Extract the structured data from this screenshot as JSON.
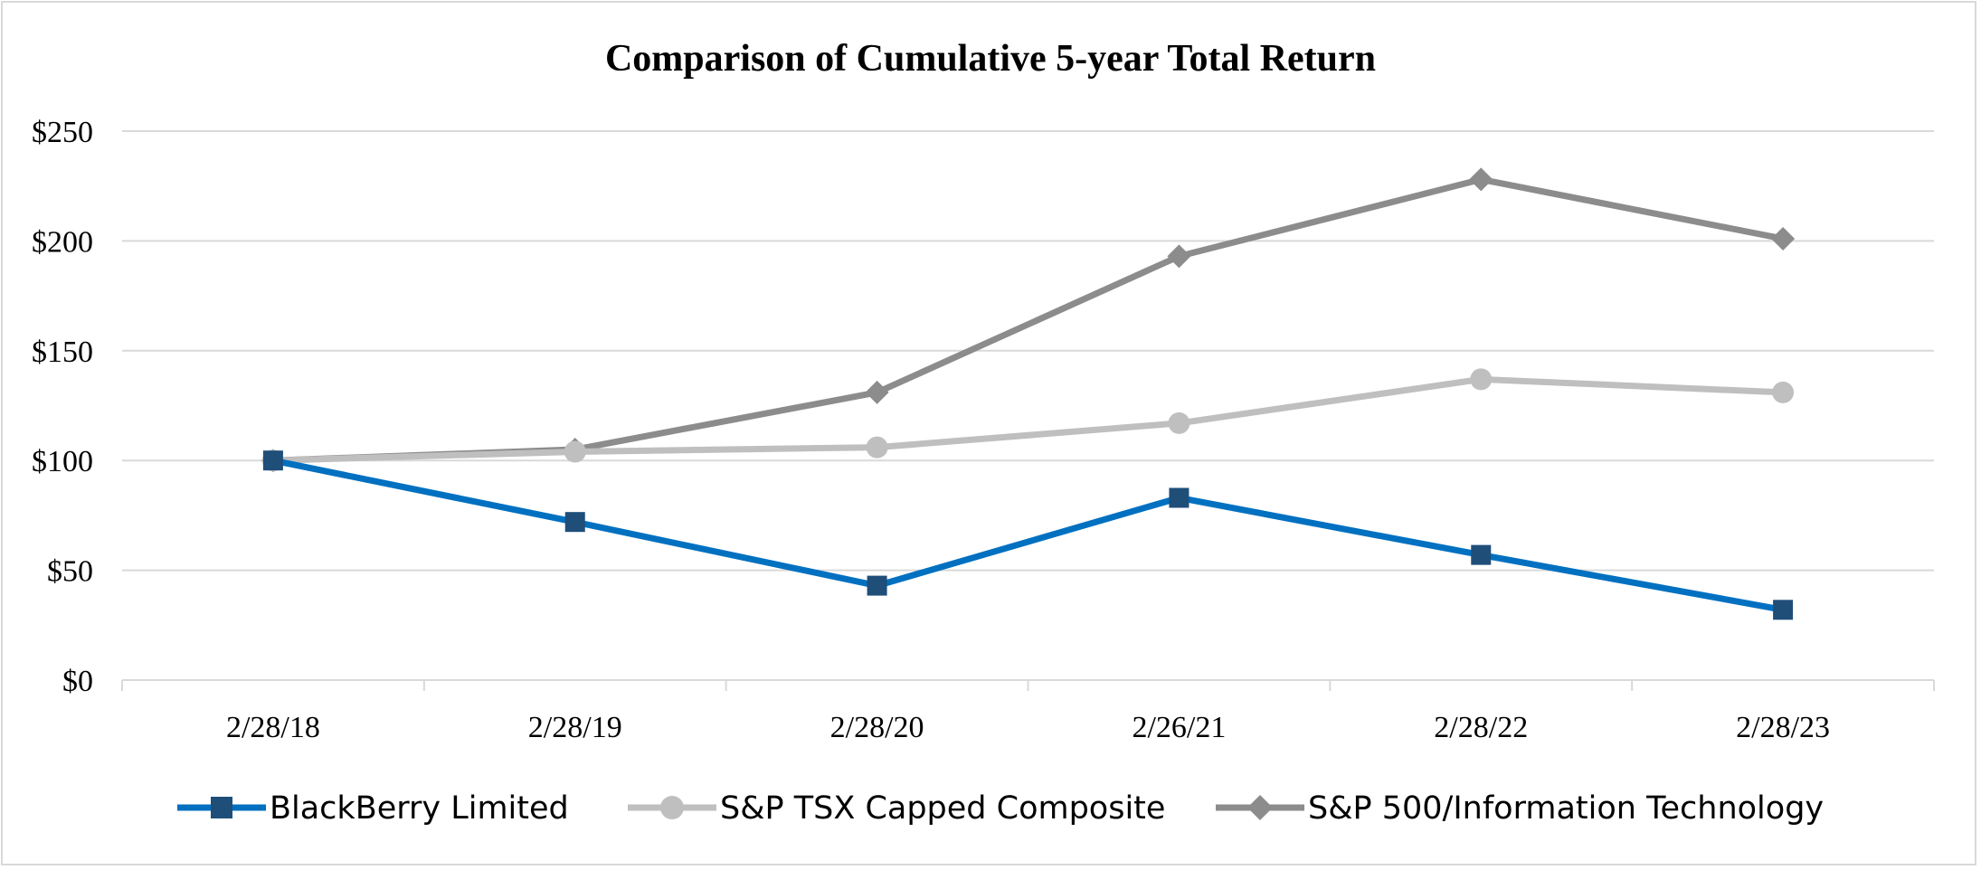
{
  "chart_data": {
    "type": "line",
    "title": "Comparison of Cumulative 5-year Total Return",
    "xlabel": "",
    "ylabel": "",
    "categories": [
      "2/28/18",
      "2/28/19",
      "2/28/20",
      "2/26/21",
      "2/28/22",
      "2/28/23"
    ],
    "ylim": [
      0,
      250
    ],
    "yticks": [
      0,
      50,
      100,
      150,
      200,
      250
    ],
    "ytick_labels": [
      "$0",
      "$50",
      "$100",
      "$150",
      "$200",
      "$250"
    ],
    "grid": true,
    "legend_position": "bottom",
    "series": [
      {
        "name": "BlackBerry Limited",
        "marker": "square",
        "color": "#0070C0",
        "marker_color": "#1F4E79",
        "values": [
          100,
          72,
          43,
          83,
          57,
          32
        ]
      },
      {
        "name": "S&P TSX Capped Composite",
        "marker": "circle",
        "color": "#BFBFBF",
        "marker_color": "#BFBFBF",
        "values": [
          100,
          104,
          106,
          117,
          137,
          131
        ]
      },
      {
        "name": "S&P 500/Information Technology",
        "marker": "diamond",
        "color": "#8C8C8C",
        "marker_color": "#8C8C8C",
        "values": [
          100,
          105,
          131,
          193,
          228,
          201
        ]
      }
    ]
  }
}
